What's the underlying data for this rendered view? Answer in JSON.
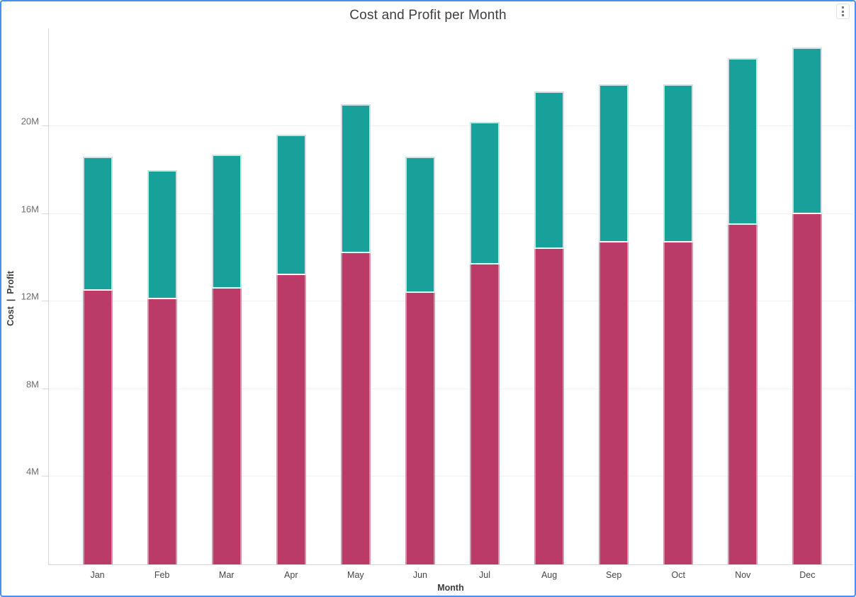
{
  "window": {
    "border_color": "#4a90f4",
    "background": "#ffffff"
  },
  "header": {
    "title": "Cost and Profit per Month",
    "menu_icon": "kebab-vertical-icon"
  },
  "chart_data": {
    "type": "bar",
    "stacked": true,
    "title": "Cost and Profit per Month",
    "xlabel": "Month",
    "ylabel": "Cost  |  Profit",
    "unit": "millions",
    "categories": [
      "Jan",
      "Feb",
      "Mar",
      "Apr",
      "May",
      "Jun",
      "Jul",
      "Aug",
      "Sep",
      "Oct",
      "Nov",
      "Dec"
    ],
    "series": [
      {
        "name": "Cost",
        "color": "#ba3a68",
        "values_m": [
          12.5,
          12.1,
          12.6,
          13.2,
          14.2,
          12.4,
          13.7,
          14.4,
          14.7,
          14.7,
          15.5,
          16.0
        ]
      },
      {
        "name": "Profit",
        "color": "#18a09b",
        "values_m": [
          6.1,
          5.9,
          6.1,
          6.4,
          6.8,
          6.2,
          6.5,
          7.2,
          7.2,
          7.2,
          7.6,
          7.6
        ]
      }
    ],
    "y_axis": {
      "tick_labels": [
        "4M",
        "8M",
        "12M",
        "16M",
        "20M"
      ],
      "tick_step_m": 4,
      "range_m": [
        0,
        24.5
      ],
      "grid": "horizontal"
    },
    "legend": "none"
  }
}
